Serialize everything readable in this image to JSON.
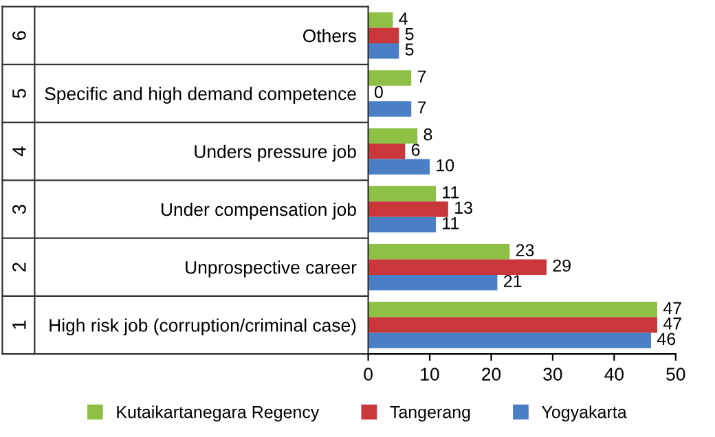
{
  "chart_data": {
    "type": "bar",
    "orientation": "horizontal",
    "categories": [
      "Others",
      "Specific and high demand competence",
      "Unders pressure job",
      "Under compensation job",
      "Unprospective career",
      "High risk job (corruption/criminal case)"
    ],
    "series": [
      {
        "name": "Kutaikartanegara Regency",
        "color": "#8dc044",
        "values": [
          4,
          7,
          8,
          11,
          23,
          47
        ]
      },
      {
        "name": "Tangerang",
        "color": "#c8373a",
        "values": [
          5,
          0,
          6,
          13,
          29,
          47
        ]
      },
      {
        "name": "Yogyakarta",
        "color": "#4a7fc6",
        "values": [
          5,
          7,
          10,
          11,
          21,
          46
        ]
      }
    ],
    "xlim": [
      0,
      50
    ],
    "xticks": [
      0,
      10,
      20,
      30,
      40,
      50
    ],
    "grid": false,
    "legend": "bottom",
    "data_labels": true,
    "annotations": [
      "6",
      "5",
      "4",
      "3",
      "2",
      "1"
    ]
  }
}
